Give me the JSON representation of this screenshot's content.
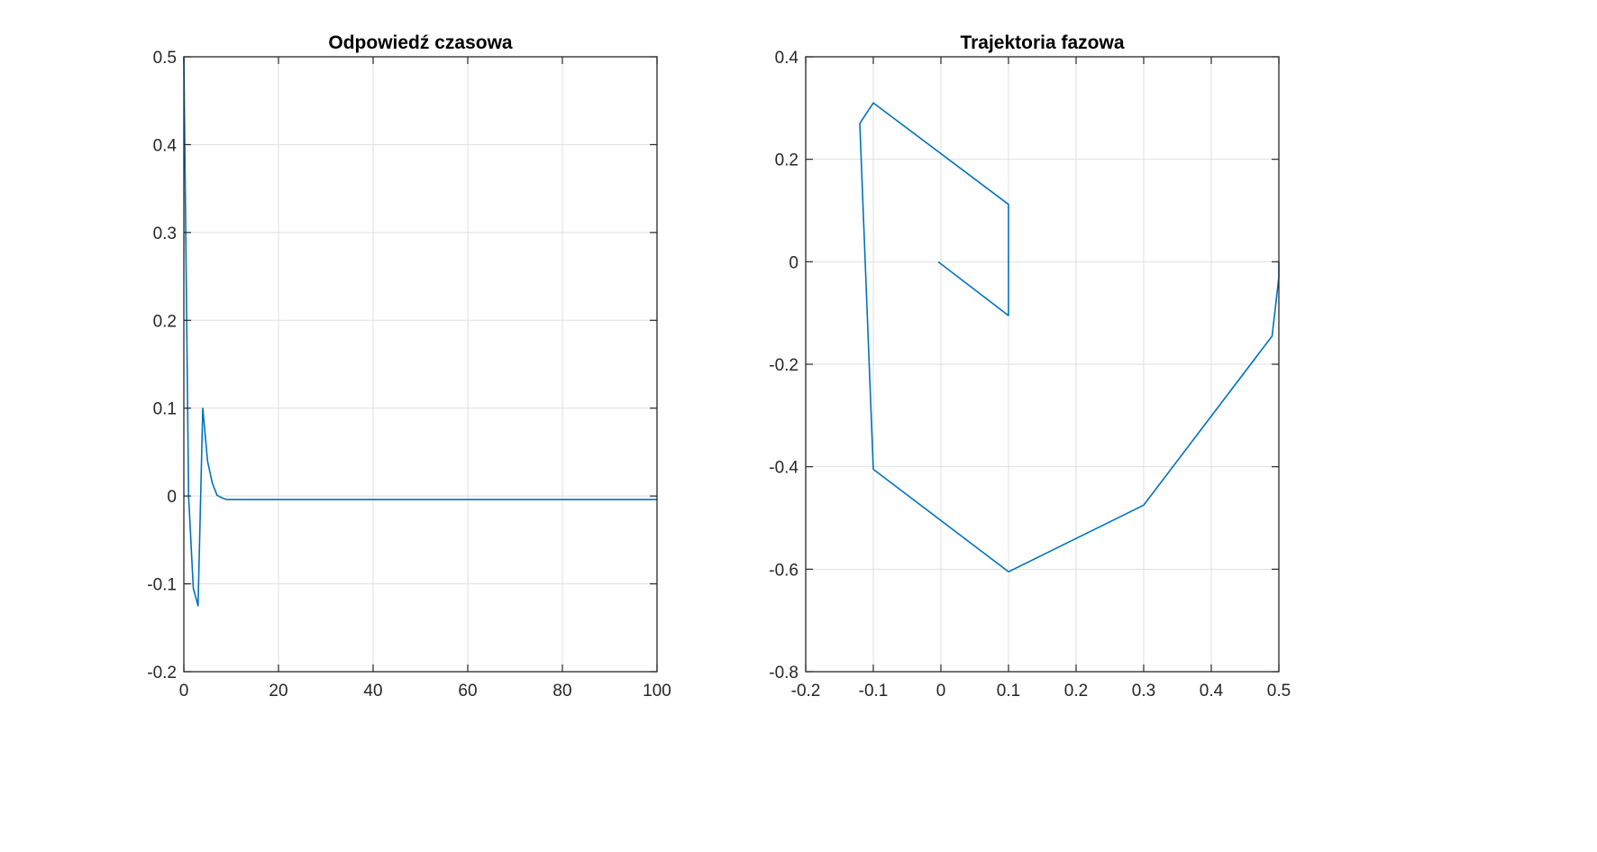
{
  "colors": {
    "series": "#0072BD",
    "grid": "#dfdfdf",
    "axis": "#262626",
    "background": "#ffffff"
  },
  "chart_data": [
    {
      "type": "line",
      "title": "Odpowiedź czasowa",
      "xlabel": "",
      "ylabel": "",
      "xlim": [
        0,
        100
      ],
      "ylim": [
        -0.2,
        0.5
      ],
      "xticks": [
        0,
        20,
        40,
        60,
        80,
        100
      ],
      "xtick_labels": [
        "0",
        "20",
        "40",
        "60",
        "80",
        "100"
      ],
      "yticks": [
        -0.2,
        -0.1,
        0,
        0.1,
        0.2,
        0.3,
        0.4,
        0.5
      ],
      "ytick_labels": [
        "-0.2",
        "-0.1",
        "0",
        "0.1",
        "0.2",
        "0.3",
        "0.4",
        "0.5"
      ],
      "grid": true,
      "series": [
        {
          "x": [
            0,
            1,
            2,
            3,
            4,
            5,
            6,
            7,
            8,
            9,
            10,
            12,
            100
          ],
          "y": [
            0.5,
            0.0,
            -0.105,
            -0.125,
            0.1,
            0.04,
            0.015,
            0.001,
            -0.002,
            -0.004,
            -0.004,
            -0.004,
            -0.004
          ]
        }
      ]
    },
    {
      "type": "line",
      "title": "Trajektoria fazowa",
      "xlabel": "",
      "ylabel": "",
      "xlim": [
        -0.2,
        0.5
      ],
      "ylim": [
        -0.8,
        0.4
      ],
      "xticks": [
        -0.2,
        -0.1,
        0,
        0.1,
        0.2,
        0.3,
        0.4,
        0.5
      ],
      "xtick_labels": [
        "-0.2",
        "-0.1",
        "0",
        "0.1",
        "0.2",
        "0.3",
        "0.4",
        "0.5"
      ],
      "yticks": [
        -0.8,
        -0.6,
        -0.4,
        -0.2,
        0,
        0.2,
        0.4
      ],
      "ytick_labels": [
        "-0.8",
        "-0.6",
        "-0.4",
        "-0.2",
        "0",
        "0.2",
        "0.4"
      ],
      "grid": true,
      "series": [
        {
          "x": [
            0.5,
            0.5,
            0.49,
            0.3,
            0.1,
            -0.1,
            -0.12,
            -0.1,
            0.1,
            0.1,
            -0.004
          ],
          "y": [
            0.0,
            -0.03,
            -0.145,
            -0.475,
            -0.605,
            -0.405,
            0.27,
            0.31,
            0.112,
            -0.105,
            0.0
          ]
        }
      ]
    }
  ]
}
